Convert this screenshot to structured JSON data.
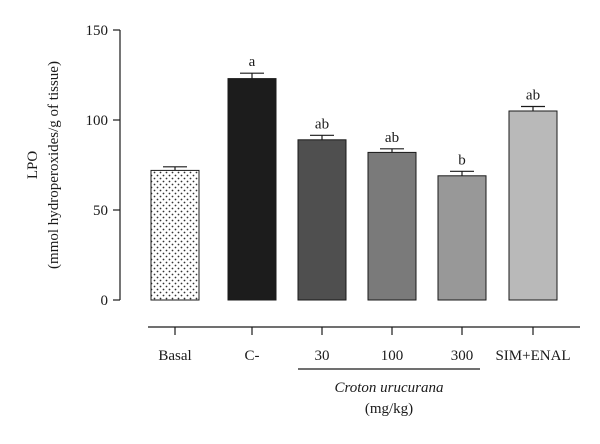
{
  "chart_data": {
    "type": "bar",
    "ylabel_line1": "LPO",
    "ylabel_line2": "(mmol hydroperoxides/g of tissue)",
    "ylim": [
      0,
      150
    ],
    "yticks": [
      0,
      50,
      100,
      150
    ],
    "ytick_labels": [
      "0",
      "50",
      "100",
      "150"
    ],
    "grid": false,
    "legend": "none",
    "categories": [
      "Basal",
      "C-",
      "30",
      "100",
      "300",
      "SIM+ENAL"
    ],
    "values": [
      72,
      123,
      89,
      82,
      69,
      105
    ],
    "errors": [
      2,
      3,
      2.5,
      2,
      2.5,
      2.5
    ],
    "annotations": [
      "",
      "a",
      "ab",
      "ab",
      "b",
      "ab"
    ],
    "bar_fills": [
      "#ffffff",
      "#1c1c1c",
      "#4f4f4f",
      "#7a7a7a",
      "#989898",
      "#b9b9b9"
    ],
    "bar_patterns": [
      "dots",
      "solid",
      "solid",
      "solid",
      "solid",
      "solid"
    ],
    "group_label_line1": "Croton urucurana",
    "group_label_line2": "(mg/kg)",
    "group_members": [
      "30",
      "100",
      "300"
    ]
  }
}
